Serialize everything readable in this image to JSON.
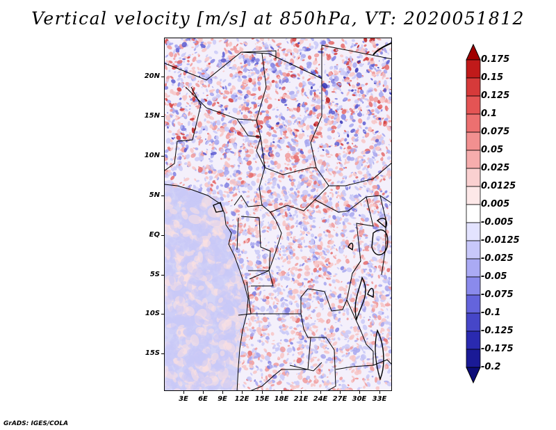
{
  "title": "Vertical velocity [m/s] at 850hPa, VT: 2020051812",
  "footer": "GrADS: IGES/COLA",
  "map": {
    "variable": "Vertical velocity",
    "units": "m/s",
    "level": "850hPa",
    "valid_time": "2020051812",
    "lat_labels": [
      "20N",
      "15N",
      "10N",
      "5N",
      "EQ",
      "5S",
      "10S",
      "15S"
    ],
    "lon_labels": [
      "3E",
      "6E",
      "9E",
      "12E",
      "15E",
      "18E",
      "21E",
      "24E",
      "27E",
      "30E",
      "33E"
    ]
  },
  "colorbar": {
    "levels": [
      "0.175",
      "0.15",
      "0.125",
      "0.1",
      "0.075",
      "0.05",
      "0.025",
      "0.0125",
      "0.005",
      "-0.005",
      "-0.0125",
      "-0.025",
      "-0.05",
      "-0.075",
      "-0.1",
      "-0.125",
      "-0.175",
      "-0.2"
    ],
    "colors": [
      "#a00000",
      "#c01a1a",
      "#d63a3a",
      "#e45454",
      "#ec7070",
      "#f29090",
      "#f6adad",
      "#fad0d0",
      "#fde8e8",
      "#ffffff",
      "#e3e3ff",
      "#c8c8fa",
      "#aaaaf4",
      "#8a8aec",
      "#6464dc",
      "#4646c8",
      "#2a2ab0",
      "#1a1a96",
      "#0c0c78"
    ]
  },
  "colors": {
    "ocean_base": "#d4d4f6",
    "land_base": "#f4f0fb",
    "border": "#000000"
  }
}
